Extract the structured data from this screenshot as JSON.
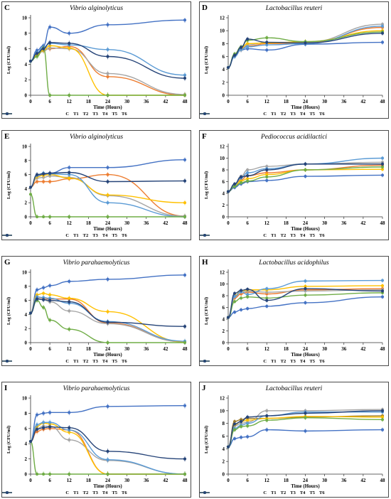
{
  "chart_data": [
    {
      "type": "line",
      "panel_label": "C",
      "title": "Vibrio alginolyticus",
      "xlabel": "Time (Hours)",
      "ylabel": "Log (CFU/ml)",
      "ylim": [
        0,
        10
      ],
      "yticks": [
        0,
        2,
        4,
        6,
        8,
        10
      ],
      "x_ticks": [
        0,
        6,
        12,
        18,
        24,
        30,
        36,
        42,
        48
      ],
      "x": [
        0,
        2,
        4,
        6,
        12,
        24,
        48
      ],
      "series": [
        {
          "name": "C",
          "color": "#4472c4",
          "values": [
            4.4,
            5.8,
            6.4,
            8.8,
            8.0,
            9.1,
            9.7
          ]
        },
        {
          "name": "T1",
          "color": "#ed7d31",
          "values": [
            4.4,
            5.3,
            5.9,
            6.0,
            6.3,
            2.4,
            0.0
          ]
        },
        {
          "name": "T2",
          "color": "#a5a5a5",
          "values": [
            4.4,
            5.2,
            5.7,
            6.1,
            6.0,
            2.8,
            0.1
          ]
        },
        {
          "name": "T3",
          "color": "#ffc000",
          "values": [
            4.4,
            5.2,
            5.8,
            6.4,
            6.1,
            0.0,
            0.0
          ]
        },
        {
          "name": "T4",
          "color": "#5b9bd5",
          "values": [
            4.4,
            5.5,
            6.2,
            6.7,
            6.5,
            5.9,
            2.6
          ]
        },
        {
          "name": "T5",
          "color": "#70ad47",
          "values": [
            4.4,
            5.0,
            6.1,
            0.0,
            0.0,
            0.0,
            0.0
          ]
        },
        {
          "name": "T6",
          "color": "#264478",
          "values": [
            4.4,
            5.4,
            6.0,
            6.8,
            6.7,
            5.0,
            2.2
          ]
        }
      ]
    },
    {
      "type": "line",
      "panel_label": "D",
      "title": "Lactobacillus reuteri",
      "xlabel": "Time (Hours)",
      "ylabel": "Log (CFU/ml)",
      "ylim": [
        0,
        12
      ],
      "yticks": [
        0,
        2,
        4,
        6,
        8,
        10,
        12
      ],
      "x_ticks": [
        0,
        6,
        12,
        18,
        24,
        30,
        36,
        42,
        48
      ],
      "x": [
        0,
        2,
        4,
        6,
        12,
        24,
        48
      ],
      "series": [
        {
          "name": "C",
          "color": "#4472c4",
          "values": [
            4.3,
            6.0,
            7.0,
            7.2,
            7.0,
            7.9,
            8.2
          ]
        },
        {
          "name": "T1",
          "color": "#ed7d31",
          "values": [
            4.3,
            6.2,
            7.2,
            7.6,
            8.0,
            8.1,
            10.5
          ]
        },
        {
          "name": "T2",
          "color": "#a5a5a5",
          "values": [
            4.3,
            6.1,
            7.0,
            7.8,
            8.2,
            8.2,
            11.0
          ]
        },
        {
          "name": "T3",
          "color": "#ffc000",
          "values": [
            4.3,
            6.3,
            7.3,
            8.0,
            8.1,
            8.3,
            10.0
          ]
        },
        {
          "name": "T4",
          "color": "#5b9bd5",
          "values": [
            4.3,
            6.0,
            7.1,
            7.5,
            7.8,
            8.0,
            10.7
          ]
        },
        {
          "name": "T5",
          "color": "#70ad47",
          "values": [
            4.3,
            6.4,
            7.5,
            8.5,
            8.9,
            8.3,
            9.8
          ]
        },
        {
          "name": "T6",
          "color": "#264478",
          "values": [
            4.3,
            6.2,
            7.4,
            8.7,
            8.2,
            8.1,
            9.6
          ]
        }
      ]
    },
    {
      "type": "line",
      "panel_label": "E",
      "title": "Vibrio alginolyticus",
      "xlabel": "Time (Hours)",
      "ylabel": "Log (CFU/ml)",
      "ylim": [
        0,
        10
      ],
      "yticks": [
        0,
        2,
        4,
        6,
        8,
        10
      ],
      "x_ticks": [
        0,
        6,
        12,
        18,
        24,
        30,
        36,
        42,
        48
      ],
      "x": [
        0,
        2,
        4,
        6,
        12,
        24,
        48
      ],
      "series": [
        {
          "name": "C",
          "color": "#4472c4",
          "values": [
            4.2,
            5.8,
            6.0,
            6.2,
            7.0,
            7.0,
            8.1
          ]
        },
        {
          "name": "T1",
          "color": "#ed7d31",
          "values": [
            4.2,
            5.0,
            5.0,
            5.0,
            5.4,
            6.0,
            0.1
          ]
        },
        {
          "name": "T2",
          "color": "#a5a5a5",
          "values": [
            4.2,
            5.5,
            5.6,
            5.8,
            5.6,
            3.0,
            0.1
          ]
        },
        {
          "name": "T3",
          "color": "#ffc000",
          "values": [
            4.2,
            5.7,
            5.9,
            6.0,
            5.5,
            3.1,
            2.0
          ]
        },
        {
          "name": "T4",
          "color": "#5b9bd5",
          "values": [
            4.2,
            5.9,
            6.2,
            6.1,
            6.0,
            2.0,
            0.0
          ]
        },
        {
          "name": "T5",
          "color": "#70ad47",
          "values": [
            3.2,
            0.0,
            0.0,
            0.0,
            0.0,
            0.0,
            0.0
          ]
        },
        {
          "name": "T6",
          "color": "#264478",
          "values": [
            4.2,
            6.0,
            6.1,
            6.2,
            6.3,
            5.0,
            5.1
          ]
        }
      ]
    },
    {
      "type": "line",
      "panel_label": "F",
      "title": "Pediococcus acidilactici",
      "xlabel": "Time (Hours)",
      "ylabel": "Log (CFU/ml)",
      "ylim": [
        0,
        12
      ],
      "yticks": [
        0,
        2,
        4,
        6,
        8,
        10,
        12
      ],
      "x_ticks": [
        0,
        6,
        12,
        18,
        24,
        30,
        36,
        42,
        48
      ],
      "x": [
        0,
        2,
        4,
        6,
        12,
        24,
        48
      ],
      "series": [
        {
          "name": "C",
          "color": "#4472c4",
          "values": [
            4.3,
            5.0,
            5.6,
            6.0,
            6.2,
            6.9,
            7.1
          ]
        },
        {
          "name": "T1",
          "color": "#ed7d31",
          "values": [
            4.3,
            5.4,
            6.3,
            7.0,
            7.5,
            8.0,
            8.8
          ]
        },
        {
          "name": "T2",
          "color": "#a5a5a5",
          "values": [
            4.3,
            5.6,
            6.9,
            8.0,
            8.6,
            9.0,
            9.3
          ]
        },
        {
          "name": "T3",
          "color": "#ffc000",
          "values": [
            4.3,
            5.3,
            6.1,
            6.5,
            7.2,
            8.0,
            8.1
          ]
        },
        {
          "name": "T4",
          "color": "#5b9bd5",
          "values": [
            4.3,
            5.5,
            6.6,
            7.5,
            8.2,
            9.0,
            10.0
          ]
        },
        {
          "name": "T5",
          "color": "#70ad47",
          "values": [
            4.3,
            5.2,
            5.8,
            6.1,
            6.8,
            8.0,
            8.5
          ]
        },
        {
          "name": "T6",
          "color": "#264478",
          "values": [
            4.3,
            5.6,
            6.8,
            7.0,
            8.0,
            9.0,
            9.0
          ]
        }
      ]
    },
    {
      "type": "line",
      "panel_label": "G",
      "title": "Vibrio parahaemolyticus",
      "xlabel": "Time (Hours)",
      "ylabel": "Log (CFU/ml)",
      "ylim": [
        0,
        10
      ],
      "yticks": [
        0,
        2,
        4,
        6,
        8,
        10
      ],
      "x_ticks": [
        0,
        6,
        12,
        18,
        24,
        30,
        36,
        42,
        48
      ],
      "x": [
        0,
        2,
        4,
        6,
        12,
        24,
        48
      ],
      "series": [
        {
          "name": "C",
          "color": "#4472c4",
          "values": [
            4.2,
            7.5,
            7.8,
            8.1,
            8.7,
            9.0,
            9.6
          ]
        },
        {
          "name": "T1",
          "color": "#ed7d31",
          "values": [
            4.2,
            6.5,
            6.3,
            6.2,
            6.2,
            2.8,
            0.1
          ]
        },
        {
          "name": "T2",
          "color": "#a5a5a5",
          "values": [
            4.2,
            6.3,
            6.1,
            5.8,
            4.5,
            2.7,
            0.1
          ]
        },
        {
          "name": "T3",
          "color": "#ffc000",
          "values": [
            4.2,
            6.8,
            7.0,
            6.8,
            6.3,
            4.4,
            0.1
          ]
        },
        {
          "name": "T4",
          "color": "#5b9bd5",
          "values": [
            4.2,
            6.5,
            6.4,
            6.3,
            5.6,
            3.0,
            0.2
          ]
        },
        {
          "name": "T5",
          "color": "#70ad47",
          "values": [
            4.2,
            6.0,
            5.0,
            3.2,
            1.9,
            0.0,
            0.0
          ]
        },
        {
          "name": "T6",
          "color": "#264478",
          "values": [
            4.2,
            6.2,
            6.1,
            6.0,
            5.8,
            2.9,
            2.3
          ]
        }
      ]
    },
    {
      "type": "line",
      "panel_label": "H",
      "title": "Lactobacillus acidophilus",
      "xlabel": "Time (Hours)",
      "ylabel": "Log (CFU/ml)",
      "ylim": [
        0,
        12
      ],
      "yticks": [
        0,
        2,
        4,
        6,
        8,
        10,
        12
      ],
      "x_ticks": [
        0,
        6,
        12,
        18,
        24,
        30,
        36,
        42,
        48
      ],
      "x": [
        0,
        2,
        4,
        6,
        12,
        24,
        48
      ],
      "series": [
        {
          "name": "C",
          "color": "#4472c4",
          "values": [
            4.3,
            5.2,
            5.6,
            5.8,
            6.2,
            6.8,
            7.8
          ]
        },
        {
          "name": "T1",
          "color": "#ed7d31",
          "values": [
            4.3,
            7.6,
            8.3,
            8.6,
            8.3,
            9.0,
            9.2
          ]
        },
        {
          "name": "T2",
          "color": "#a5a5a5",
          "values": [
            4.3,
            7.8,
            8.6,
            8.8,
            8.6,
            8.8,
            9.0
          ]
        },
        {
          "name": "T3",
          "color": "#ffc000",
          "values": [
            4.3,
            8.0,
            8.8,
            9.0,
            9.0,
            9.6,
            9.7
          ]
        },
        {
          "name": "T4",
          "color": "#5b9bd5",
          "values": [
            4.3,
            7.9,
            8.7,
            8.2,
            9.2,
            10.5,
            10.6
          ]
        },
        {
          "name": "T5",
          "color": "#70ad47",
          "values": [
            4.3,
            7.0,
            7.6,
            7.8,
            7.6,
            8.1,
            8.5
          ]
        },
        {
          "name": "T6",
          "color": "#264478",
          "values": [
            4.3,
            8.4,
            8.9,
            9.1,
            7.2,
            9.2,
            8.8
          ]
        }
      ]
    },
    {
      "type": "line",
      "panel_label": "I",
      "title": "Vibrio parahaemolyticus",
      "xlabel": "Time (Hours)",
      "ylabel": "Log (CFU/ml)",
      "ylim": [
        0,
        10
      ],
      "yticks": [
        0,
        2,
        4,
        6,
        8,
        10
      ],
      "x_ticks": [
        0,
        6,
        12,
        18,
        24,
        30,
        36,
        42,
        48
      ],
      "x": [
        0,
        2,
        4,
        6,
        12,
        24,
        48
      ],
      "series": [
        {
          "name": "C",
          "color": "#4472c4",
          "values": [
            4.3,
            7.8,
            8.0,
            8.1,
            8.1,
            8.9,
            9.0
          ]
        },
        {
          "name": "T1",
          "color": "#ed7d31",
          "values": [
            4.3,
            5.6,
            5.9,
            6.0,
            5.8,
            0.0,
            0.0
          ]
        },
        {
          "name": "T2",
          "color": "#a5a5a5",
          "values": [
            4.3,
            6.0,
            6.3,
            6.3,
            4.5,
            1.8,
            0.0
          ]
        },
        {
          "name": "T3",
          "color": "#ffc000",
          "values": [
            4.3,
            6.3,
            6.7,
            6.6,
            5.5,
            0.0,
            0.0
          ]
        },
        {
          "name": "T4",
          "color": "#5b9bd5",
          "values": [
            4.3,
            6.5,
            6.8,
            6.8,
            5.8,
            1.9,
            0.0
          ]
        },
        {
          "name": "T5",
          "color": "#70ad47",
          "values": [
            4.3,
            0.0,
            0.0,
            0.0,
            0.0,
            0.0,
            0.0
          ]
        },
        {
          "name": "T6",
          "color": "#264478",
          "values": [
            4.3,
            5.9,
            6.1,
            6.2,
            6.1,
            3.0,
            2.0
          ]
        }
      ]
    },
    {
      "type": "line",
      "panel_label": "J",
      "title": "Lactobacillus reuteri",
      "xlabel": "Time (Hours)",
      "ylabel": "Log (CFU/ml)",
      "ylim": [
        0,
        12
      ],
      "yticks": [
        0,
        2,
        4,
        6,
        8,
        10,
        12
      ],
      "x_ticks": [
        0,
        6,
        12,
        18,
        24,
        30,
        36,
        42,
        48
      ],
      "x": [
        0,
        2,
        4,
        6,
        12,
        24,
        48
      ],
      "series": [
        {
          "name": "C",
          "color": "#4472c4",
          "values": [
            4.3,
            5.6,
            5.8,
            5.9,
            7.0,
            6.8,
            7.0
          ]
        },
        {
          "name": "T1",
          "color": "#9c7a2a",
          "values": [
            4.3,
            8.3,
            8.6,
            8.8,
            8.8,
            9.0,
            9.2
          ]
        },
        {
          "name": "T2",
          "color": "#a5a5a5",
          "values": [
            4.3,
            7.6,
            8.0,
            8.2,
            10.0,
            10.0,
            10.2
          ]
        },
        {
          "name": "T3",
          "color": "#ffc000",
          "values": [
            4.3,
            7.8,
            8.3,
            8.5,
            8.8,
            9.1,
            9.0
          ]
        },
        {
          "name": "T4",
          "color": "#5b9bd5",
          "values": [
            4.3,
            7.2,
            7.7,
            8.0,
            9.2,
            9.8,
            9.8
          ]
        },
        {
          "name": "T5",
          "color": "#70ad47",
          "values": [
            4.3,
            7.0,
            7.5,
            7.6,
            8.5,
            8.9,
            8.6
          ]
        },
        {
          "name": "T6",
          "color": "#264478",
          "values": [
            4.3,
            7.9,
            8.3,
            9.0,
            9.2,
            9.6,
            10.0
          ]
        }
      ]
    }
  ]
}
